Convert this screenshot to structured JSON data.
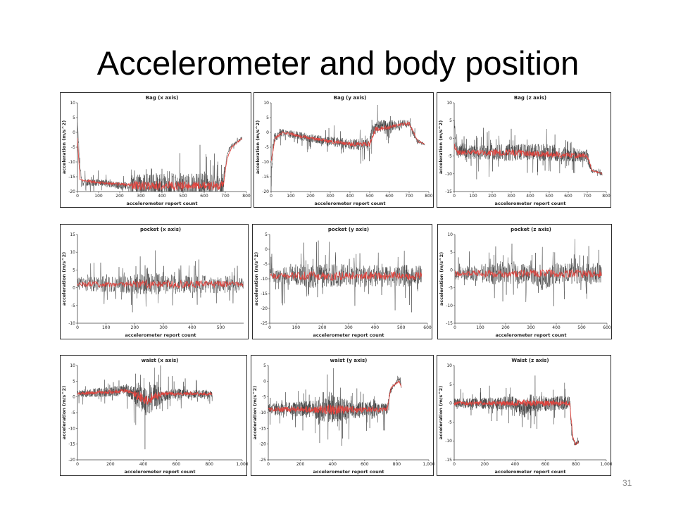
{
  "slide": {
    "title": "Accelerometer and body position",
    "page_number": "31"
  },
  "chart_data": [
    {
      "id": "bag-x",
      "type": "line",
      "title": "Bag (x axis)",
      "xlabel": "accelerometer report count",
      "ylabel": "acceleration (m/s^2)",
      "xlim": [
        0,
        800
      ],
      "ylim": [
        -20,
        10
      ],
      "xticks": [
        0,
        100,
        200,
        300,
        400,
        500,
        600,
        700,
        800
      ],
      "yticks": [
        -20,
        -15,
        -10,
        -5,
        0,
        5,
        10
      ],
      "xtick_labels": [
        "0",
        "100",
        "200",
        "300",
        "400",
        "500",
        "600",
        "700",
        "800"
      ],
      "ytick_labels": [
        "-20",
        "-15",
        "-10",
        "-5",
        "0",
        "5",
        "10"
      ],
      "n_points": 780,
      "raw_profile": [
        [
          0,
          4
        ],
        [
          8,
          -8
        ],
        [
          20,
          -17
        ],
        [
          100,
          -17
        ],
        [
          200,
          -18
        ],
        [
          300,
          -18
        ],
        [
          500,
          -18
        ],
        [
          690,
          -18
        ],
        [
          705,
          -9
        ],
        [
          720,
          -5
        ],
        [
          760,
          -3
        ],
        [
          780,
          -2
        ]
      ],
      "raw_noise_profile": [
        [
          0,
          2
        ],
        [
          250,
          2
        ],
        [
          260,
          7
        ],
        [
          690,
          7
        ],
        [
          700,
          1
        ],
        [
          780,
          1
        ]
      ],
      "smooth_profile": [
        [
          0,
          -2
        ],
        [
          12,
          -16
        ],
        [
          100,
          -17
        ],
        [
          300,
          -18
        ],
        [
          690,
          -18
        ],
        [
          708,
          -9
        ],
        [
          730,
          -5
        ],
        [
          780,
          -2
        ]
      ],
      "series": [
        {
          "name": "raw",
          "color": "#3a3a3a"
        },
        {
          "name": "smoothed",
          "color": "#e0453f"
        }
      ]
    },
    {
      "id": "bag-y",
      "type": "line",
      "title": "Bag (y axis)",
      "xlabel": "accelerometer report count",
      "ylabel": "acceleration (m/s^2)",
      "xlim": [
        0,
        800
      ],
      "ylim": [
        -20,
        10
      ],
      "xticks": [
        0,
        100,
        200,
        300,
        400,
        500,
        600,
        700,
        800
      ],
      "yticks": [
        -20,
        -15,
        -10,
        -5,
        0,
        5,
        10
      ],
      "xtick_labels": [
        "0",
        "100",
        "200",
        "300",
        "400",
        "500",
        "600",
        "700",
        "800"
      ],
      "ytick_labels": [
        "-20",
        "-15",
        "-10",
        "-5",
        "0",
        "5",
        "10"
      ],
      "n_points": 780,
      "raw_profile": [
        [
          0,
          -15
        ],
        [
          15,
          -2
        ],
        [
          60,
          0
        ],
        [
          200,
          -2
        ],
        [
          400,
          -4
        ],
        [
          500,
          -4
        ],
        [
          510,
          0
        ],
        [
          540,
          2
        ],
        [
          700,
          3
        ],
        [
          740,
          -3
        ],
        [
          780,
          -4
        ]
      ],
      "raw_noise_profile": [
        [
          0,
          3
        ],
        [
          40,
          2
        ],
        [
          400,
          3
        ],
        [
          520,
          4
        ],
        [
          700,
          2
        ],
        [
          780,
          1
        ]
      ],
      "smooth_profile": [
        [
          0,
          -10
        ],
        [
          20,
          -2
        ],
        [
          60,
          0
        ],
        [
          200,
          -2
        ],
        [
          400,
          -4
        ],
        [
          500,
          -4
        ],
        [
          530,
          1
        ],
        [
          700,
          3
        ],
        [
          745,
          -3
        ],
        [
          780,
          -4
        ]
      ],
      "series": [
        {
          "name": "raw",
          "color": "#3a3a3a"
        },
        {
          "name": "smoothed",
          "color": "#e0453f"
        }
      ]
    },
    {
      "id": "bag-z",
      "type": "line",
      "title": "Bag (z axis)",
      "xlabel": "accelerometer report count",
      "ylabel": "acceleration (m/s^2)",
      "xlim": [
        0,
        800
      ],
      "ylim": [
        -15,
        10
      ],
      "xticks": [
        0,
        100,
        200,
        300,
        400,
        500,
        600,
        700,
        800
      ],
      "yticks": [
        -15,
        -10,
        -5,
        0,
        5,
        10
      ],
      "xtick_labels": [
        "0",
        "100",
        "200",
        "300",
        "400",
        "500",
        "600",
        "700",
        "800"
      ],
      "ytick_labels": [
        "-15",
        "-10",
        "-5",
        "0",
        "5",
        "10"
      ],
      "n_points": 780,
      "raw_profile": [
        [
          0,
          5
        ],
        [
          10,
          -3
        ],
        [
          100,
          -4
        ],
        [
          300,
          -4
        ],
        [
          500,
          -4
        ],
        [
          700,
          -5
        ],
        [
          720,
          -9
        ],
        [
          780,
          -10
        ]
      ],
      "raw_noise_profile": [
        [
          0,
          3
        ],
        [
          200,
          4
        ],
        [
          500,
          4
        ],
        [
          700,
          3
        ],
        [
          720,
          1
        ],
        [
          780,
          1
        ]
      ],
      "smooth_profile": [
        [
          0,
          -2
        ],
        [
          20,
          -4
        ],
        [
          300,
          -4
        ],
        [
          700,
          -5
        ],
        [
          725,
          -9
        ],
        [
          780,
          -10
        ]
      ],
      "series": [
        {
          "name": "raw",
          "color": "#3a3a3a"
        },
        {
          "name": "smoothed",
          "color": "#e0453f"
        }
      ]
    },
    {
      "id": "pocket-x",
      "type": "line",
      "title": "pocket (x axis)",
      "xlabel": "accelerometer report count",
      "ylabel": "acceleration (m/s^2)",
      "xlim": [
        0,
        580
      ],
      "ylim": [
        -10,
        15
      ],
      "xticks": [
        0,
        100,
        200,
        300,
        400,
        500
      ],
      "yticks": [
        -10,
        -5,
        0,
        5,
        10,
        15
      ],
      "xtick_labels": [
        "0",
        "100",
        "200",
        "300",
        "400",
        "500"
      ],
      "ytick_labels": [
        "-10",
        "-5",
        "0",
        "5",
        "10",
        "15"
      ],
      "n_points": 580,
      "raw_profile": [
        [
          0,
          1
        ],
        [
          580,
          1
        ]
      ],
      "raw_noise_profile": [
        [
          0,
          3
        ],
        [
          250,
          5
        ],
        [
          560,
          4
        ],
        [
          580,
          3
        ]
      ],
      "smooth_profile": [
        [
          0,
          1
        ],
        [
          580,
          1
        ]
      ],
      "series": [
        {
          "name": "raw",
          "color": "#3a3a3a"
        },
        {
          "name": "smoothed",
          "color": "#e0453f"
        }
      ]
    },
    {
      "id": "pocket-y",
      "type": "line",
      "title": "pocket (y axis)",
      "xlabel": "accelerometer report count",
      "ylabel": "acceleration (m/s^2)",
      "xlim": [
        0,
        600
      ],
      "ylim": [
        -25,
        5
      ],
      "xticks": [
        0,
        100,
        200,
        300,
        400,
        500,
        600
      ],
      "yticks": [
        -25,
        -20,
        -15,
        -10,
        -5,
        0,
        5
      ],
      "xtick_labels": [
        "0",
        "100",
        "200",
        "300",
        "400",
        "500",
        "600"
      ],
      "ytick_labels": [
        "-25",
        "-20",
        "-15",
        "-10",
        "-5",
        "0",
        "5"
      ],
      "n_points": 580,
      "raw_profile": [
        [
          0,
          -9
        ],
        [
          580,
          -9
        ]
      ],
      "raw_noise_profile": [
        [
          0,
          4
        ],
        [
          150,
          7
        ],
        [
          580,
          6
        ]
      ],
      "smooth_profile": [
        [
          0,
          -9
        ],
        [
          580,
          -9
        ]
      ],
      "series": [
        {
          "name": "raw",
          "color": "#3a3a3a"
        },
        {
          "name": "smoothed",
          "color": "#e0453f"
        }
      ]
    },
    {
      "id": "pocket-z",
      "type": "line",
      "title": "pocket (z axis)",
      "xlabel": "accelerometer report count",
      "ylabel": "acceleration (m/s^2)",
      "xlim": [
        0,
        600
      ],
      "ylim": [
        -15,
        10
      ],
      "xticks": [
        0,
        100,
        200,
        300,
        400,
        500,
        600
      ],
      "yticks": [
        -15,
        -10,
        -5,
        0,
        5,
        10
      ],
      "xtick_labels": [
        "0",
        "100",
        "200",
        "300",
        "400",
        "500",
        "600"
      ],
      "ytick_labels": [
        "-15",
        "-10",
        "-5",
        "0",
        "5",
        "10"
      ],
      "n_points": 580,
      "raw_profile": [
        [
          0,
          -1
        ],
        [
          300,
          -1
        ],
        [
          340,
          -3
        ],
        [
          400,
          -1
        ],
        [
          580,
          -1
        ]
      ],
      "raw_noise_profile": [
        [
          0,
          3
        ],
        [
          150,
          5
        ],
        [
          580,
          5
        ]
      ],
      "smooth_profile": [
        [
          0,
          -1
        ],
        [
          580,
          -1
        ]
      ],
      "series": [
        {
          "name": "raw",
          "color": "#3a3a3a"
        },
        {
          "name": "smoothed",
          "color": "#e0453f"
        }
      ]
    },
    {
      "id": "waist-x",
      "type": "line",
      "title": "waist (x axis)",
      "xlabel": "accelerometer report count",
      "ylabel": "acceleration (m/s^2)",
      "xlim": [
        0,
        1000
      ],
      "ylim": [
        -20,
        10
      ],
      "xticks": [
        0,
        200,
        400,
        600,
        800,
        1000
      ],
      "yticks": [
        -20,
        -15,
        -10,
        -5,
        0,
        5,
        10
      ],
      "xtick_labels": [
        "0",
        "200",
        "400",
        "600",
        "800",
        "1,000"
      ],
      "ytick_labels": [
        "-20",
        "-15",
        "-10",
        "-5",
        "0",
        "5",
        "10"
      ],
      "n_points": 820,
      "raw_profile": [
        [
          0,
          1
        ],
        [
          300,
          2
        ],
        [
          380,
          0
        ],
        [
          420,
          -2
        ],
        [
          460,
          0
        ],
        [
          600,
          1
        ],
        [
          820,
          1
        ]
      ],
      "raw_noise_profile": [
        [
          0,
          2
        ],
        [
          320,
          3
        ],
        [
          360,
          7
        ],
        [
          480,
          7
        ],
        [
          520,
          3
        ],
        [
          820,
          2
        ]
      ],
      "smooth_profile": [
        [
          0,
          1
        ],
        [
          300,
          2
        ],
        [
          420,
          -1
        ],
        [
          520,
          1
        ],
        [
          820,
          1
        ]
      ],
      "series": [
        {
          "name": "raw",
          "color": "#3a3a3a"
        },
        {
          "name": "smoothed",
          "color": "#e0453f"
        }
      ]
    },
    {
      "id": "waist-y",
      "type": "line",
      "title": "waist (y axis)",
      "xlabel": "accelerometer report count",
      "ylabel": "acceleration (m/s^2)",
      "xlim": [
        0,
        1000
      ],
      "ylim": [
        -25,
        5
      ],
      "xticks": [
        0,
        200,
        400,
        600,
        800,
        1000
      ],
      "yticks": [
        -25,
        -20,
        -15,
        -10,
        -5,
        0,
        5
      ],
      "xtick_labels": [
        "0",
        "200",
        "400",
        "600",
        "800",
        "1,000"
      ],
      "ytick_labels": [
        "-25",
        "-20",
        "-15",
        "-10",
        "-5",
        "0",
        "5"
      ],
      "n_points": 830,
      "raw_profile": [
        [
          0,
          -9
        ],
        [
          740,
          -9
        ],
        [
          760,
          -3
        ],
        [
          790,
          -1
        ],
        [
          815,
          1
        ],
        [
          830,
          -2
        ]
      ],
      "raw_noise_profile": [
        [
          0,
          3
        ],
        [
          300,
          5
        ],
        [
          400,
          8
        ],
        [
          500,
          5
        ],
        [
          740,
          3
        ],
        [
          760,
          1
        ],
        [
          830,
          1
        ]
      ],
      "smooth_profile": [
        [
          0,
          -9
        ],
        [
          740,
          -9
        ],
        [
          765,
          -2
        ],
        [
          815,
          0
        ],
        [
          830,
          -2
        ]
      ],
      "series": [
        {
          "name": "raw",
          "color": "#3a3a3a"
        },
        {
          "name": "smoothed",
          "color": "#e0453f"
        }
      ]
    },
    {
      "id": "waist-z",
      "type": "line",
      "title": "Waist (z axis)",
      "xlabel": "accelerometer report count",
      "ylabel": "acceleration (m/s^2)",
      "xlim": [
        0,
        1000
      ],
      "ylim": [
        -15,
        10
      ],
      "xticks": [
        0,
        200,
        400,
        600,
        800,
        1000
      ],
      "yticks": [
        -15,
        -10,
        -5,
        0,
        5,
        10
      ],
      "xtick_labels": [
        "0",
        "200",
        "400",
        "600",
        "800",
        "1,000"
      ],
      "ytick_labels": [
        "-15",
        "-10",
        "-5",
        "0",
        "5",
        "10"
      ],
      "n_points": 820,
      "raw_profile": [
        [
          0,
          0
        ],
        [
          400,
          0
        ],
        [
          450,
          -2
        ],
        [
          500,
          0
        ],
        [
          760,
          0
        ],
        [
          775,
          -8
        ],
        [
          790,
          -11
        ],
        [
          820,
          -10
        ]
      ],
      "raw_noise_profile": [
        [
          0,
          2
        ],
        [
          380,
          3
        ],
        [
          450,
          4
        ],
        [
          760,
          3
        ],
        [
          780,
          1
        ],
        [
          820,
          1
        ]
      ],
      "smooth_profile": [
        [
          0,
          0
        ],
        [
          760,
          0
        ],
        [
          780,
          -9
        ],
        [
          800,
          -11
        ],
        [
          820,
          -10
        ]
      ],
      "series": [
        {
          "name": "raw",
          "color": "#3a3a3a"
        },
        {
          "name": "smoothed",
          "color": "#e0453f"
        }
      ]
    }
  ]
}
